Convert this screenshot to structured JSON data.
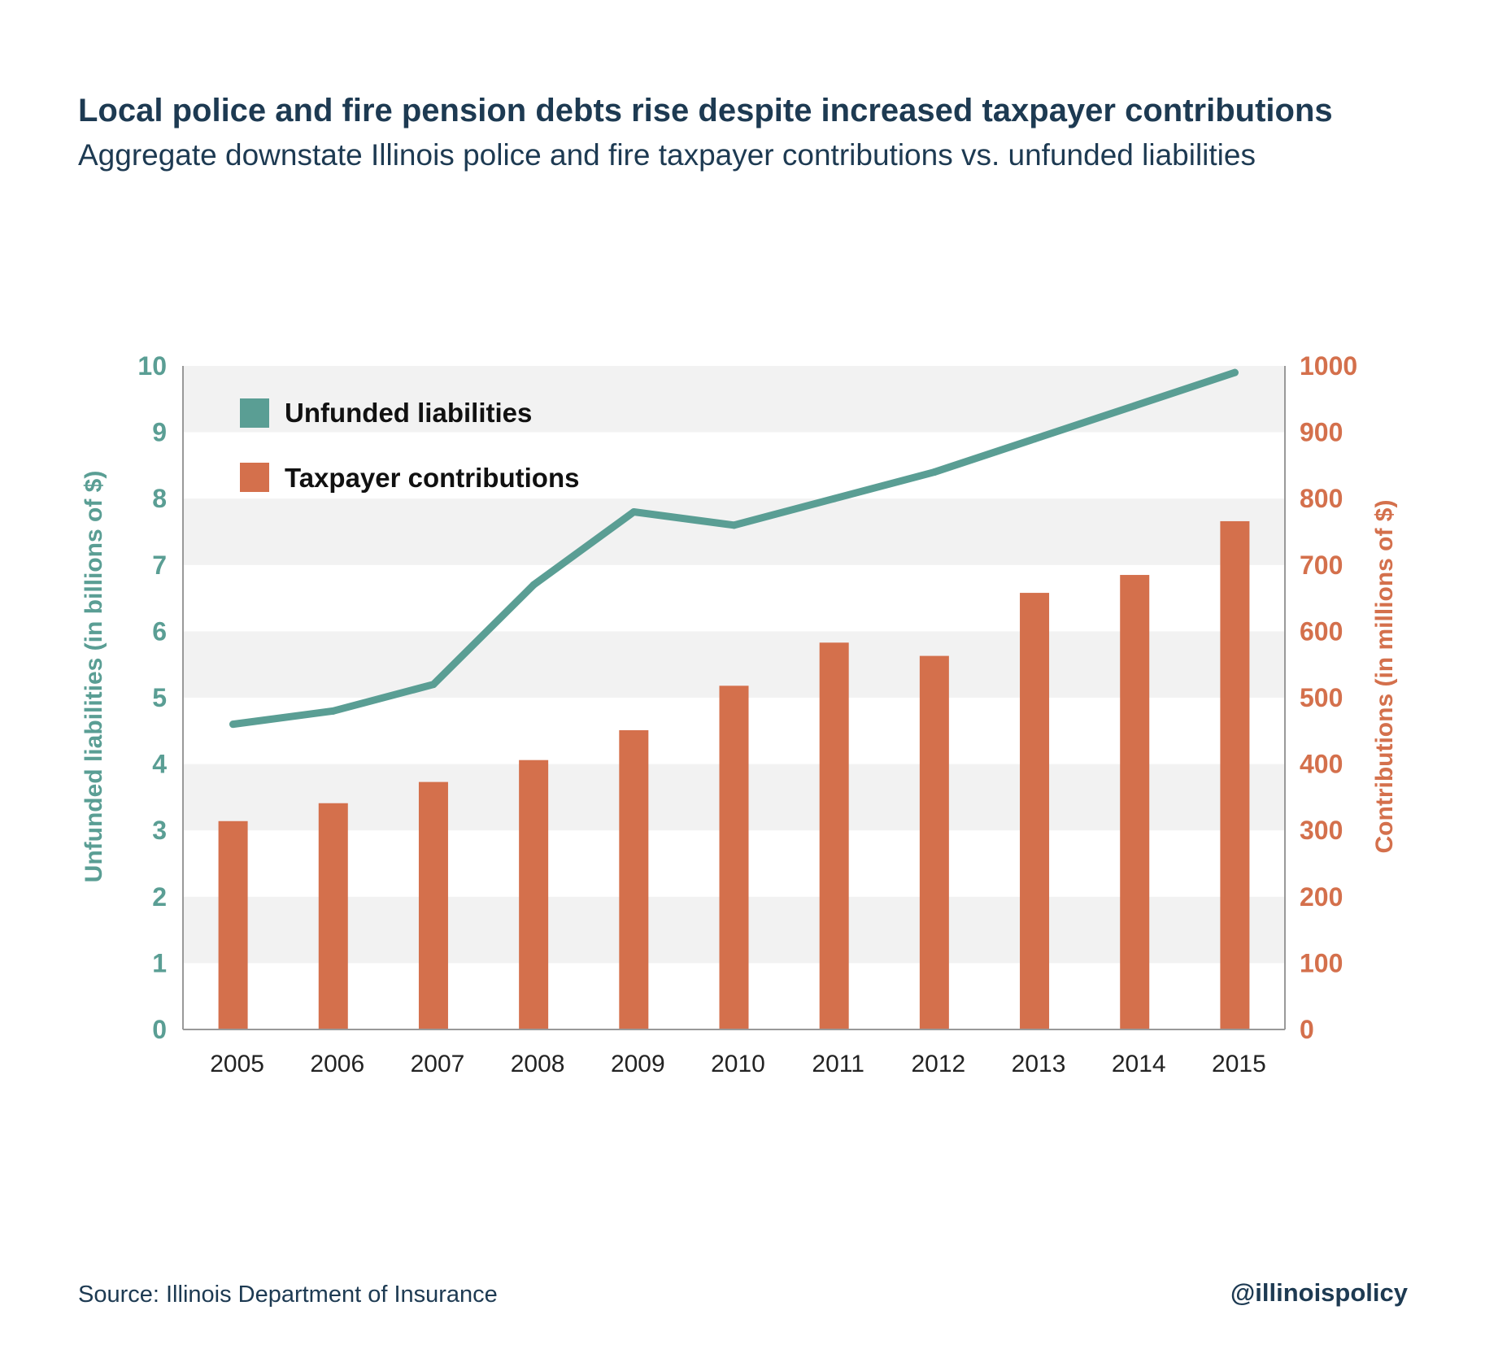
{
  "header": {
    "title": "Local police and fire pension debts rise despite increased taxpayer contributions",
    "subtitle": "Aggregate downstate Illinois police and fire taxpayer contributions vs. unfunded liabilities"
  },
  "footer": {
    "source": "Source: Illinois Department of Insurance",
    "handle": "@illinoispolicy"
  },
  "colors": {
    "liabilities": "#5a9e94",
    "contributions": "#d4704c",
    "band": "#f2f2f2",
    "axis": "#999999"
  },
  "chart_data": {
    "type": "bar",
    "categories": [
      "2005",
      "2006",
      "2007",
      "2008",
      "2009",
      "2010",
      "2011",
      "2012",
      "2013",
      "2014",
      "2015"
    ],
    "series": [
      {
        "name": "Taxpayer contributions",
        "type": "bar",
        "axis": "right",
        "values": [
          314,
          341,
          373,
          406,
          451,
          518,
          583,
          563,
          658,
          685,
          766
        ]
      },
      {
        "name": "Unfunded liabilities",
        "type": "line",
        "axis": "left",
        "values": [
          4.6,
          4.8,
          5.2,
          6.7,
          7.8,
          7.6,
          8.0,
          8.4,
          8.9,
          9.4,
          9.9
        ]
      }
    ],
    "y_left": {
      "label": "Unfunded liabilities (in billions of $)",
      "range": [
        0,
        10
      ],
      "ticks": [
        "0",
        "1",
        "2",
        "3",
        "4",
        "5",
        "6",
        "7",
        "8",
        "9",
        "10"
      ]
    },
    "y_right": {
      "label": "Contributions (in millions of $)",
      "range": [
        0,
        1000
      ],
      "ticks": [
        "0",
        "100",
        "200",
        "300",
        "400",
        "500",
        "600",
        "700",
        "800",
        "900",
        "1000"
      ]
    },
    "legend": {
      "placement": "top-left",
      "items": [
        "Unfunded liabilities",
        "Taxpayer contributions"
      ]
    },
    "grid": "alternating horizontal bands"
  }
}
